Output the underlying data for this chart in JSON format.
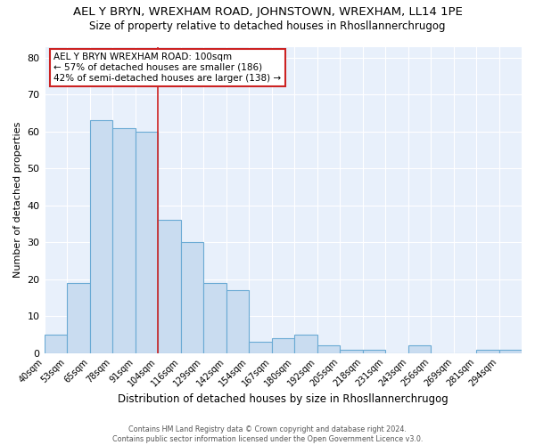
{
  "title": "AEL Y BRYN, WREXHAM ROAD, JOHNSTOWN, WREXHAM, LL14 1PE",
  "subtitle": "Size of property relative to detached houses in Rhosllannerchrugog",
  "xlabel": "Distribution of detached houses by size in Rhosllannerchrugog",
  "ylabel": "Number of detached properties",
  "categories": [
    "40sqm",
    "53sqm",
    "65sqm",
    "78sqm",
    "91sqm",
    "104sqm",
    "116sqm",
    "129sqm",
    "142sqm",
    "154sqm",
    "167sqm",
    "180sqm",
    "192sqm",
    "205sqm",
    "218sqm",
    "231sqm",
    "243sqm",
    "256sqm",
    "269sqm",
    "281sqm",
    "294sqm"
  ],
  "values": [
    5,
    19,
    63,
    61,
    60,
    36,
    30,
    19,
    17,
    3,
    4,
    5,
    2,
    1,
    1,
    0,
    2,
    0,
    0,
    1,
    1
  ],
  "bar_color": "#c9dcf0",
  "bar_edge_color": "#6aaad4",
  "vline_index": 5,
  "vline_color": "#cc2222",
  "annotation_line1": "AEL Y BRYN WREXHAM ROAD: 100sqm",
  "annotation_line2": "← 57% of detached houses are smaller (186)",
  "annotation_line3": "42% of semi-detached houses are larger (138) →",
  "ylim": [
    0,
    83
  ],
  "yticks": [
    0,
    10,
    20,
    30,
    40,
    50,
    60,
    70,
    80
  ],
  "background_color": "#e8f0fb",
  "grid_color": "#ffffff",
  "footer_line1": "Contains HM Land Registry data © Crown copyright and database right 2024.",
  "footer_line2": "Contains public sector information licensed under the Open Government Licence v3.0.",
  "title_fontsize": 9.5,
  "subtitle_fontsize": 8.5,
  "xlabel_fontsize": 8.5,
  "ylabel_fontsize": 8.0,
  "tick_fontsize": 7,
  "annotation_fontsize": 7.5,
  "footer_fontsize": 5.8
}
